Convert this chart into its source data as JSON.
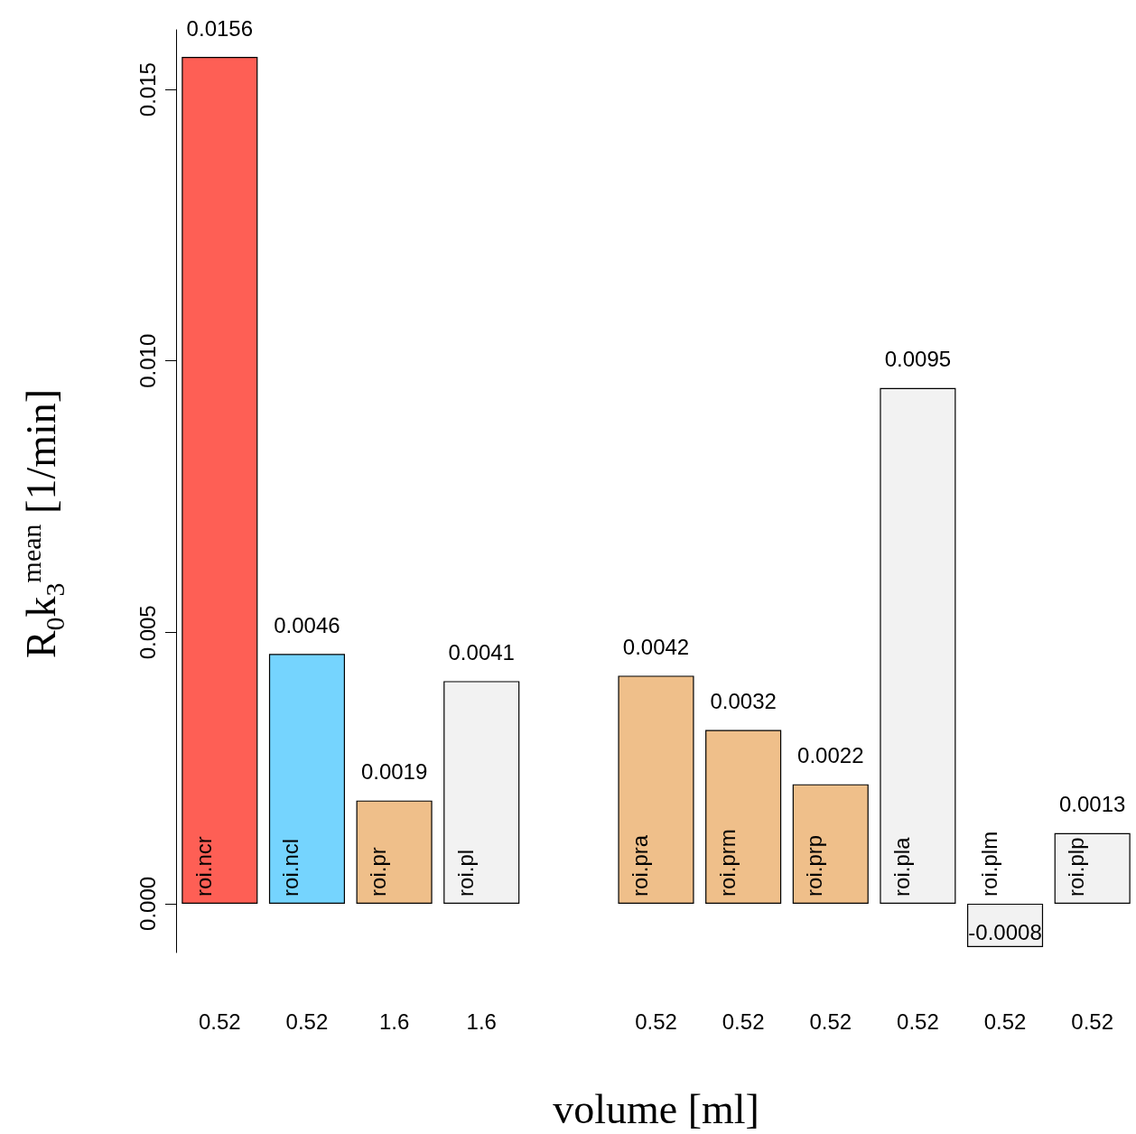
{
  "chart_data": {
    "type": "bar",
    "xlabel": "volume [ml]",
    "ylabel": "R$_{0}$k$_{3}$$^{mean}$ [1/min]",
    "categories": [
      "0.52",
      "0.52",
      "1.6",
      "1.6",
      null,
      "0.52",
      "0.52",
      "0.52",
      "0.52",
      "0.52",
      "0.52"
    ],
    "values": [
      0.0156,
      0.0046,
      0.0019,
      0.0041,
      null,
      0.0042,
      0.0032,
      0.0022,
      0.0095,
      -0.0008,
      0.0013
    ],
    "colors": [
      "#fe5f55",
      "#75d4fe",
      "#efbf8a",
      "#f2f2f2",
      null,
      "#efbf8a",
      "#efbf8a",
      "#efbf8a",
      "#f2f2f2",
      "#f2f2f2",
      "#f2f2f2"
    ],
    "annotations": [
      "roi.ncr",
      "roi.ncl",
      "roi.pr",
      "roi.pl",
      "roi.pra",
      "roi.prm",
      "roi.prp",
      "roi.pla",
      "roi.plm",
      "roi.plp"
    ],
    "data_labels": true,
    "ylim": [
      -0.0009,
      0.0161
    ],
    "yticks": [
      {
        "value": 0,
        "label": "0.000"
      },
      {
        "value": 0.005,
        "label": "0.005"
      },
      {
        "value": 0.01,
        "label": "0.010"
      },
      {
        "value": 0.015,
        "label": "0.015"
      }
    ],
    "grid": false
  }
}
